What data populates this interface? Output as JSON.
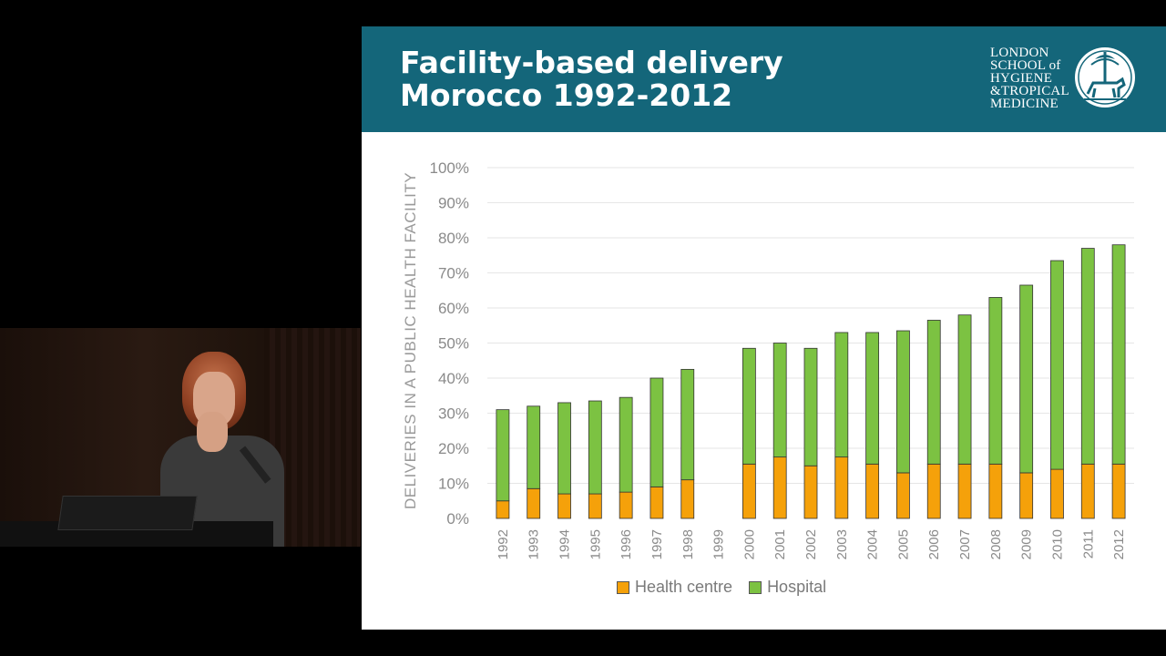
{
  "slide": {
    "title_line1": "Facility-based delivery",
    "title_line2": "Morocco 1992-2012",
    "logo_lines": [
      "LONDON",
      "SCHOOL of",
      "HYGIENE",
      "&TROPICAL",
      "MEDICINE"
    ]
  },
  "colors": {
    "header": "#14667a",
    "health_centre": "#f5a10a",
    "hospital": "#7cc242"
  },
  "chart_data": {
    "type": "bar",
    "stacked": true,
    "title": "",
    "xlabel": "",
    "ylabel": "DELIVERIES IN A PUBLIC HEALTH FACILITY",
    "ylim": [
      0,
      100
    ],
    "yticks": [
      "0%",
      "10%",
      "20%",
      "30%",
      "40%",
      "50%",
      "60%",
      "70%",
      "80%",
      "90%",
      "100%"
    ],
    "categories": [
      "1992",
      "1993",
      "1994",
      "1995",
      "1996",
      "1997",
      "1998",
      "1999",
      "2000",
      "2001",
      "2002",
      "2003",
      "2004",
      "2005",
      "2006",
      "2007",
      "2008",
      "2009",
      "2010",
      "2011",
      "2012"
    ],
    "series": [
      {
        "name": "Health centre",
        "values": [
          5,
          8.5,
          7,
          7,
          7.5,
          9,
          11,
          null,
          15.5,
          17.5,
          15,
          17.5,
          15.5,
          13,
          15.5,
          15.5,
          15.5,
          13,
          14,
          15.5,
          15.5
        ]
      },
      {
        "name": "Hospital",
        "values": [
          26,
          23.5,
          26,
          26.5,
          27,
          31,
          31.5,
          null,
          33,
          32.5,
          33.5,
          35.5,
          37.5,
          40.5,
          41,
          42.5,
          47.5,
          53.5,
          59.5,
          61.5,
          62.5
        ]
      }
    ],
    "legend": "bottom"
  }
}
